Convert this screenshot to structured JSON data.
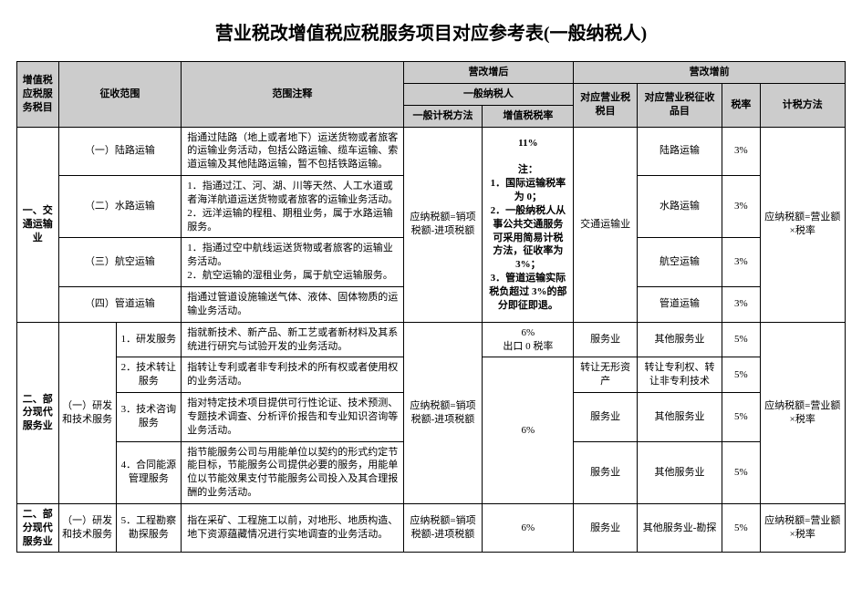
{
  "title": "营业税改增值税应税服务项目对应参考表(一般纳税人)",
  "header": {
    "col_taxitem": "增值税应税服务税目",
    "col_scope": "征收范围",
    "col_note": "范围注释",
    "group_after": "营改增后",
    "group_before": "营改增前",
    "sub_after": "一般纳税人",
    "col_before_item": "对应营业税税目",
    "col_before_collect": "对应营业税征收品目",
    "col_brate": "税率",
    "col_calc": "计税方法",
    "col_method": "一般计税方法",
    "col_rate": "增值税税率"
  },
  "section1": {
    "taxitem": "一、交通运输业",
    "rows": [
      {
        "scope1": "（一）陆路运输",
        "scope2": "",
        "note": "指通过陆路（地上或者地下）运送货物或者旅客的运输业务活动，包括公路运输、缆车运输、索道运输及其他陆路运输，暂不包括铁路运输。",
        "bizcol": "陆路运输",
        "brate": "3%"
      },
      {
        "scope1": "（二）水路运输",
        "scope2": "",
        "note": "1．指通过江、河、湖、川等天然、人工水道或者海洋航道运送货物或者旅客的运输业务活动。\n2．远洋运输的程租、期租业务，属于水路运输服务。",
        "bizcol": "水路运输",
        "brate": "3%"
      },
      {
        "scope1": "（三）航空运输",
        "scope2": "",
        "note": "1．指通过空中航线运送货物或者旅客的运输业务活动。\n2．航空运输的湿租业务，属于航空运输服务。",
        "bizcol": "航空运输",
        "brate": "3%"
      },
      {
        "scope1": "（四）管道运输",
        "scope2": "",
        "note": "指通过管道设施输送气体、液体、固体物质的运输业务活动。",
        "bizcol": "管道运输",
        "brate": "3%"
      }
    ],
    "method": "应纳税额=销项税额-进项税额",
    "rate_block": "11%\n\n注：\n1．国际运输税率为 0；\n2．一般纳税人从事公共交通服务可采用简易计税方法，征收率为 3%；\n3．管道运输实际税负超过 3%的部分即征即退。",
    "bizitem": "交通运输业",
    "calc": "应纳税额=营业额×税率"
  },
  "section2": {
    "taxitem": "二、部分现代服务业",
    "scope1": "（一）研发和技术服务",
    "rows": [
      {
        "scope2": "1．研发服务",
        "note": "指就新技术、新产品、新工艺或者新材料及其系统进行研究与试验开发的业务活动。",
        "rate": "6%\n出口 0 税率",
        "bizitem": "服务业",
        "bizcol": "其他服务业",
        "brate": "5%",
        "rate_rowspan": 1
      },
      {
        "scope2": "2．技术转让服务",
        "note": "指转让专利或者非专利技术的所有权或者使用权的业务活动。",
        "bizitem": "转让无形资产",
        "bizcol": "转让专利权、转让非专利技术",
        "brate": "5%"
      },
      {
        "scope2": "3．技术咨询服务",
        "note": "指对特定技术项目提供可行性论证、技术预测、专题技术调查、分析评价报告和专业知识咨询等业务活动。",
        "bizitem": "服务业",
        "bizcol": "其他服务业",
        "brate": "5%"
      },
      {
        "scope2": "4．合同能源管理服务",
        "note": "指节能服务公司与用能单位以契约的形式约定节能目标，节能服务公司提供必要的服务，用能单位以节能效果支付节能服务公司投入及其合理报酬的业务活动。",
        "bizitem": "服务业",
        "bizcol": "其他服务业",
        "brate": "5%"
      }
    ],
    "method": "应纳税额=销项税额-进项税额",
    "rate_lower": "6%",
    "calc": "应纳税额=营业额×税率"
  },
  "section3": {
    "taxitem": "二、部分现代服务业",
    "scope1": "（一）研发和技术服务",
    "scope2": "5．工程勘察勘探服务",
    "note": "指在采矿、工程施工以前，对地形、地质构造、地下资源蕴藏情况进行实地调查的业务活动。",
    "method": "应纳税额=销项税额-进项税额",
    "rate": "6%",
    "bizitem": "服务业",
    "bizcol": "其他服务业-勘探",
    "brate": "5%",
    "calc": "应纳税额=营业额×税率"
  }
}
